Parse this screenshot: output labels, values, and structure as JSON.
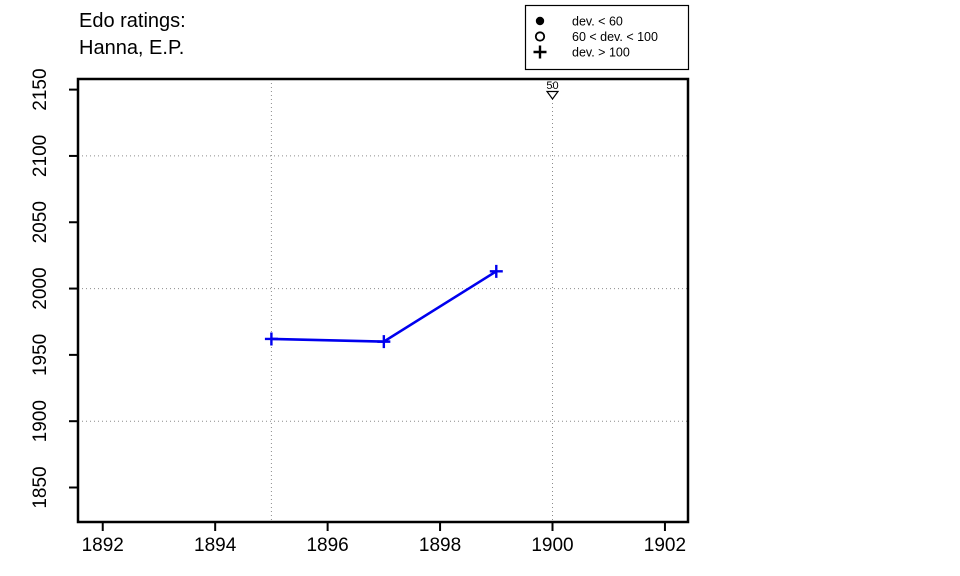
{
  "title": {
    "line1": "Edo ratings:",
    "line2": "Hanna, E.P."
  },
  "legend": {
    "items": [
      {
        "symbol": "filled-circle",
        "label": "dev. < 60"
      },
      {
        "symbol": "open-circle",
        "label": "60 < dev. < 100"
      },
      {
        "symbol": "plus",
        "label": "dev. > 100"
      }
    ]
  },
  "chart_data": {
    "type": "line",
    "title": "Edo ratings: Hanna, E.P.",
    "title_lines": [
      "Edo ratings:",
      "Hanna, E.P."
    ],
    "xlabel": "",
    "ylabel": "",
    "xlim": [
      1891.56,
      1902.41
    ],
    "ylim": [
      1824,
      2158
    ],
    "xticks": [
      1892,
      1894,
      1896,
      1898,
      1900,
      1902
    ],
    "yticks": [
      1850,
      1900,
      1950,
      2000,
      2050,
      2100,
      2150
    ],
    "x_gridlines": [
      1895,
      1900
    ],
    "y_gridlines": [
      1900,
      2000,
      2100
    ],
    "grid_style": "dotted",
    "grid_color": "#8c8c8c",
    "series": [
      {
        "name": "Edo rating",
        "color": "#0000EE",
        "marker": "plus",
        "points": [
          {
            "x": 1895,
            "y": 1962
          },
          {
            "x": 1897,
            "y": 1960
          },
          {
            "x": 1899,
            "y": 2013
          }
        ]
      }
    ],
    "event_markers": [
      {
        "x": 1900,
        "label": "50",
        "symbol": "triangle-down-open"
      }
    ],
    "legend": {
      "position": "top-right",
      "items": [
        {
          "symbol": "filled-circle",
          "label": "dev. < 60"
        },
        {
          "symbol": "open-circle",
          "label": "60 < dev. < 100"
        },
        {
          "symbol": "plus",
          "label": "dev. > 100"
        }
      ]
    }
  }
}
